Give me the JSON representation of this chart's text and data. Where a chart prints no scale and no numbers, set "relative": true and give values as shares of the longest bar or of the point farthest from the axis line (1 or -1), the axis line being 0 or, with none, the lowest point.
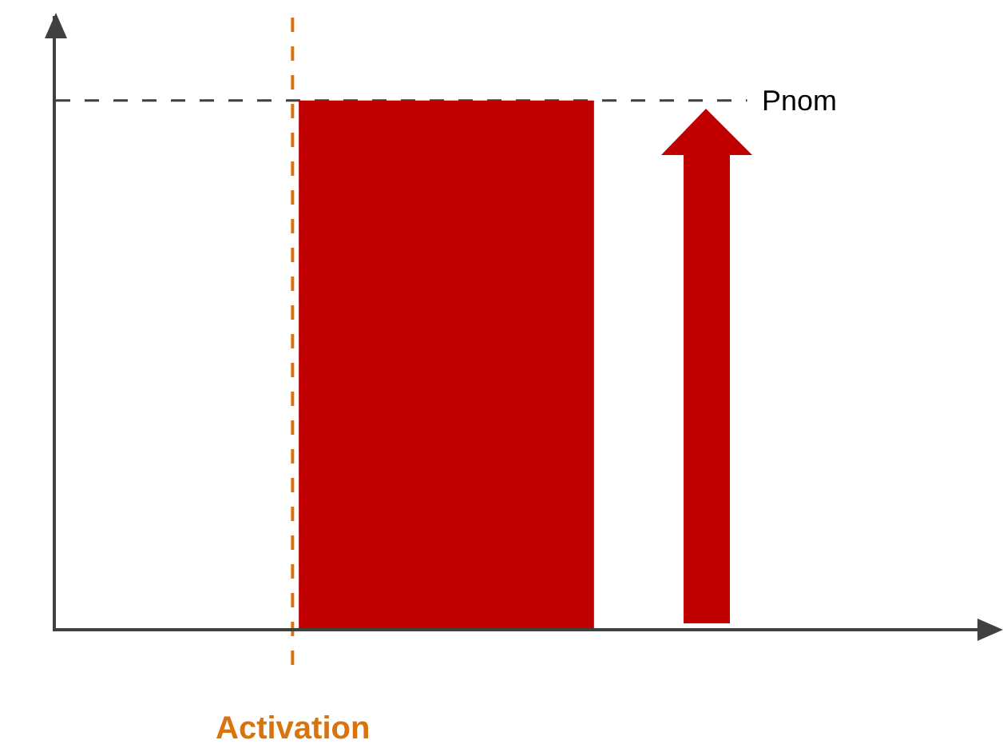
{
  "chart_data": {
    "type": "bar",
    "relative": true,
    "categories": [
      null
    ],
    "series": [
      {
        "color": "#c00000",
        "values": [
          1
        ]
      }
    ],
    "annotations": [
      "Pnom",
      "Activation"
    ]
  }
}
